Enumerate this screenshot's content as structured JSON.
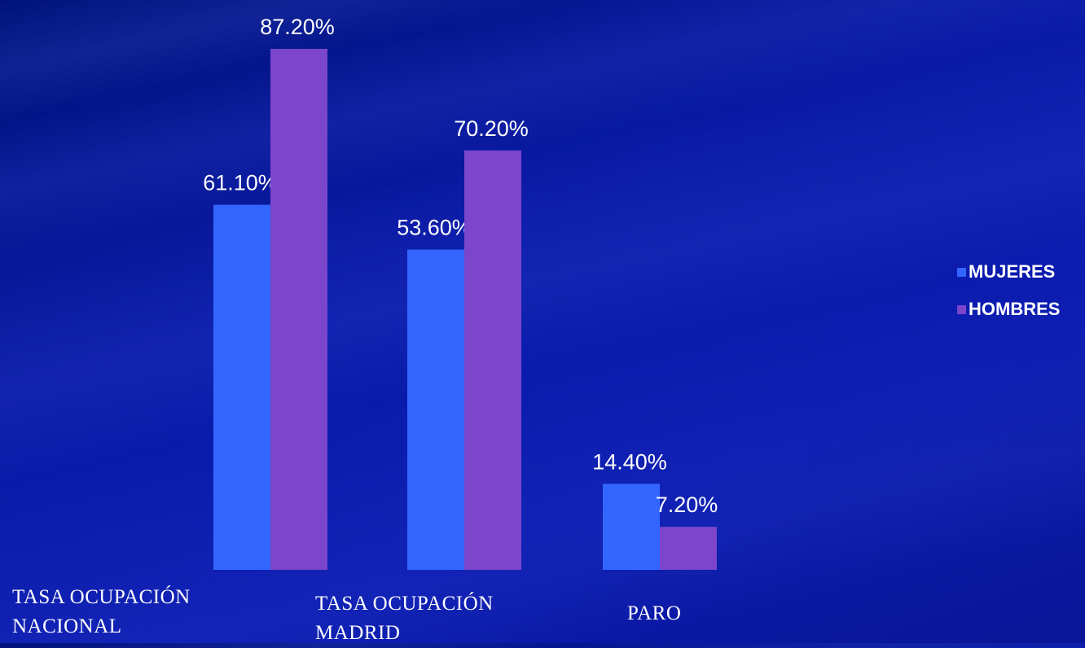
{
  "chart_data": {
    "type": "bar",
    "categories": [
      "TASA OCUPACIÓN NACIONAL",
      "TASA OCUPACIÓN MADRID",
      "PARO"
    ],
    "series": [
      {
        "name": "MUJERES",
        "color": "#3366ff",
        "values": [
          61.1,
          53.6,
          14.4
        ],
        "value_labels": [
          "61.10%",
          "53.60%",
          "14.40%"
        ]
      },
      {
        "name": "HOMBRES",
        "color": "#7b45cc",
        "values": [
          87.2,
          70.2,
          7.2
        ],
        "value_labels": [
          "87.20%",
          "70.20%",
          "7.20%"
        ]
      }
    ],
    "legend": "right"
  }
}
